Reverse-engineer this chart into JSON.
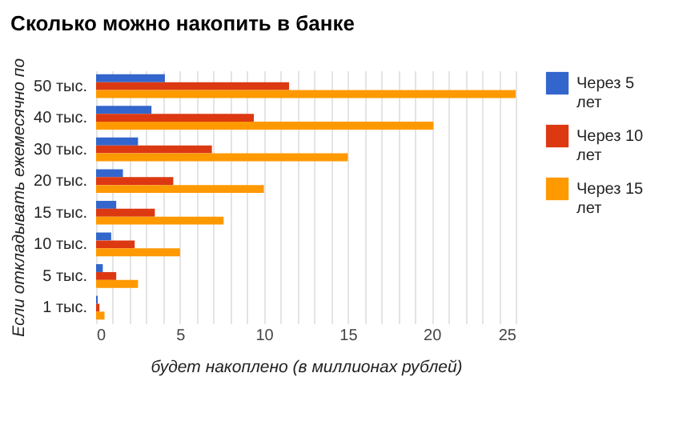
{
  "chart_data": {
    "type": "bar",
    "orientation": "horizontal",
    "title": "Сколько можно накопить в банке",
    "xlabel": "будет накоплено (в миллионах рублей)",
    "ylabel": "Если откладывать ежемесячно по",
    "categories": [
      "50 тыс.",
      "40 тыс.",
      "30 тыс.",
      "20 тыс.",
      "15 тыс.",
      "10 тыс.",
      "5 тыс.",
      "1 тыс."
    ],
    "series": [
      {
        "name": "Через 5 лет",
        "color": "#3366cc",
        "values": [
          4.1,
          3.3,
          2.5,
          1.6,
          1.2,
          0.9,
          0.4,
          0.1
        ]
      },
      {
        "name": "Через 10 лет",
        "color": "#dc3912",
        "values": [
          11.5,
          9.4,
          6.9,
          4.6,
          3.5,
          2.3,
          1.2,
          0.2
        ]
      },
      {
        "name": "Через 15 лет",
        "color": "#ff9900",
        "values": [
          25,
          20.1,
          15,
          10,
          7.6,
          5.0,
          2.5,
          0.5
        ]
      }
    ],
    "xlim": [
      0,
      25
    ],
    "xticks": [
      0,
      {
        "value": 1,
        "label": null
      },
      {
        "value": 2,
        "label": null
      },
      {
        "value": 3,
        "label": null
      },
      {
        "value": 4,
        "label": null
      },
      5,
      {
        "value": 6,
        "label": null
      },
      {
        "value": 7,
        "label": null
      },
      {
        "value": 8,
        "label": null
      },
      {
        "value": 9,
        "label": null
      },
      10,
      {
        "value": 11,
        "label": null
      },
      {
        "value": 12,
        "label": null
      },
      {
        "value": 13,
        "label": null
      },
      {
        "value": 14,
        "label": null
      },
      15,
      {
        "value": 16,
        "label": null
      },
      {
        "value": 17,
        "label": null
      },
      {
        "value": 18,
        "label": null
      },
      {
        "value": 19,
        "label": null
      },
      20,
      {
        "value": 21,
        "label": null
      },
      {
        "value": 22,
        "label": null
      },
      {
        "value": 23,
        "label": null
      },
      {
        "value": 24,
        "label": null
      },
      25
    ],
    "grid": "x",
    "legend": "right"
  }
}
